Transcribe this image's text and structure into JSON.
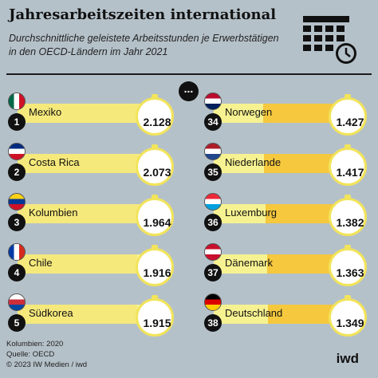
{
  "header": {
    "title": "Jahresarbeitszeiten international",
    "subtitle": "Durchschnittliche geleistete Arbeitsstunden je Erwerbstätigen in den OECD-Ländern im Jahr 2021"
  },
  "ellipsis": "...",
  "colors": {
    "background": "#b5c1c9",
    "bar": "#f6e97c",
    "bar_light": "#f7f291",
    "bar_right": "#f5c83e",
    "dark": "#111111"
  },
  "icons": {
    "header": "calendar-clock-icon",
    "stopwatch": "stopwatch-icon"
  },
  "chart_data": {
    "type": "bar",
    "title": "Jahresarbeitszeiten international",
    "unit": "Arbeitsstunden je Erwerbstätigen",
    "left": [
      {
        "rank": "1",
        "country": "Mexiko",
        "value": 2128,
        "display": "2.128",
        "flag": [
          "#006847",
          "#ffffff",
          "#ce1126"
        ]
      },
      {
        "rank": "2",
        "country": "Costa Rica",
        "value": 2073,
        "display": "2.073",
        "flag": [
          "#002b7f",
          "#ffffff",
          "#ce1126"
        ]
      },
      {
        "rank": "3",
        "country": "Kolumbien",
        "value": 1964,
        "display": "1.964",
        "flag": [
          "#fcd116",
          "#003893",
          "#ce1126"
        ]
      },
      {
        "rank": "4",
        "country": "Chile",
        "value": 1916,
        "display": "1.916",
        "flag": [
          "#0039a6",
          "#ffffff",
          "#d52b1e"
        ]
      },
      {
        "rank": "5",
        "country": "Südkorea",
        "value": 1915,
        "display": "1.915",
        "flag": [
          "#ffffff",
          "#cd2e3a",
          "#0047a0"
        ]
      }
    ],
    "right": [
      {
        "rank": "34",
        "country": "Norwegen",
        "value": 1427,
        "display": "1.427",
        "flag": [
          "#ba0c2f",
          "#ffffff",
          "#00205b"
        ]
      },
      {
        "rank": "35",
        "country": "Niederlande",
        "value": 1417,
        "display": "1.417",
        "flag": [
          "#ae1c28",
          "#ffffff",
          "#21468b"
        ]
      },
      {
        "rank": "36",
        "country": "Luxemburg",
        "value": 1382,
        "display": "1.382",
        "flag": [
          "#ed2939",
          "#ffffff",
          "#00a1de"
        ]
      },
      {
        "rank": "37",
        "country": "Dänemark",
        "value": 1363,
        "display": "1.363",
        "flag": [
          "#c8102e",
          "#ffffff",
          "#c8102e"
        ]
      },
      {
        "rank": "38",
        "country": "Deutschland",
        "value": 1349,
        "display": "1.349",
        "flag": [
          "#000000",
          "#dd0000",
          "#ffce00"
        ]
      }
    ]
  },
  "footer": {
    "note": "Kolumbien: 2020",
    "source": "Quelle: OECD",
    "copyright": "© 2023 IW Medien / iwd",
    "brand": "iwd"
  }
}
